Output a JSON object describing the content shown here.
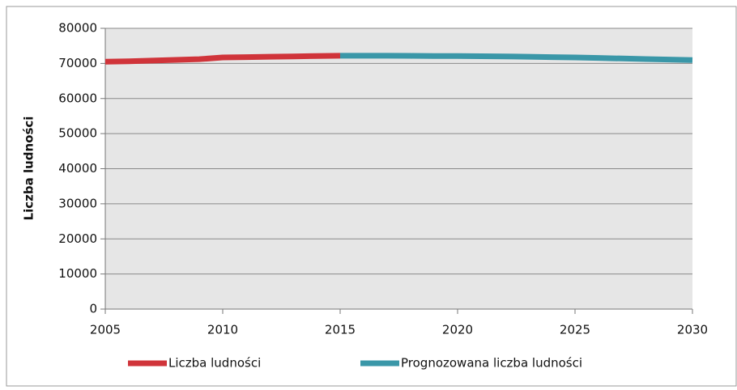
{
  "chart_data": {
    "type": "line",
    "y_label": "Liczba ludności",
    "x": [
      2005,
      2006,
      2007,
      2008,
      2009,
      2010,
      2011,
      2012,
      2013,
      2014,
      2015,
      2016,
      2017,
      2018,
      2019,
      2020,
      2021,
      2022,
      2023,
      2024,
      2025,
      2026,
      2027,
      2028,
      2029,
      2030
    ],
    "series": [
      {
        "name": "Liczba ludności",
        "color": "#d0343a",
        "values": [
          70500,
          70600,
          70800,
          71000,
          71200,
          71700,
          71800,
          71900,
          72000,
          72100,
          72200,
          null,
          null,
          null,
          null,
          null,
          null,
          null,
          null,
          null,
          null,
          null,
          null,
          null,
          null,
          null
        ]
      },
      {
        "name": "Prognozowana liczba ludności",
        "color": "#3a97a8",
        "values": [
          null,
          null,
          null,
          null,
          null,
          null,
          null,
          null,
          null,
          null,
          72200,
          72200,
          72200,
          72150,
          72100,
          72100,
          72050,
          72000,
          71900,
          71800,
          71700,
          71550,
          71400,
          71250,
          71100,
          70950
        ]
      }
    ],
    "xlim": [
      2005,
      2030
    ],
    "xticks": [
      2005,
      2010,
      2015,
      2020,
      2025,
      2030
    ],
    "ylim": [
      0,
      80000
    ],
    "yticks": [
      0,
      10000,
      20000,
      30000,
      40000,
      50000,
      60000,
      70000,
      80000
    ],
    "grid": true,
    "legend": "bottom"
  }
}
